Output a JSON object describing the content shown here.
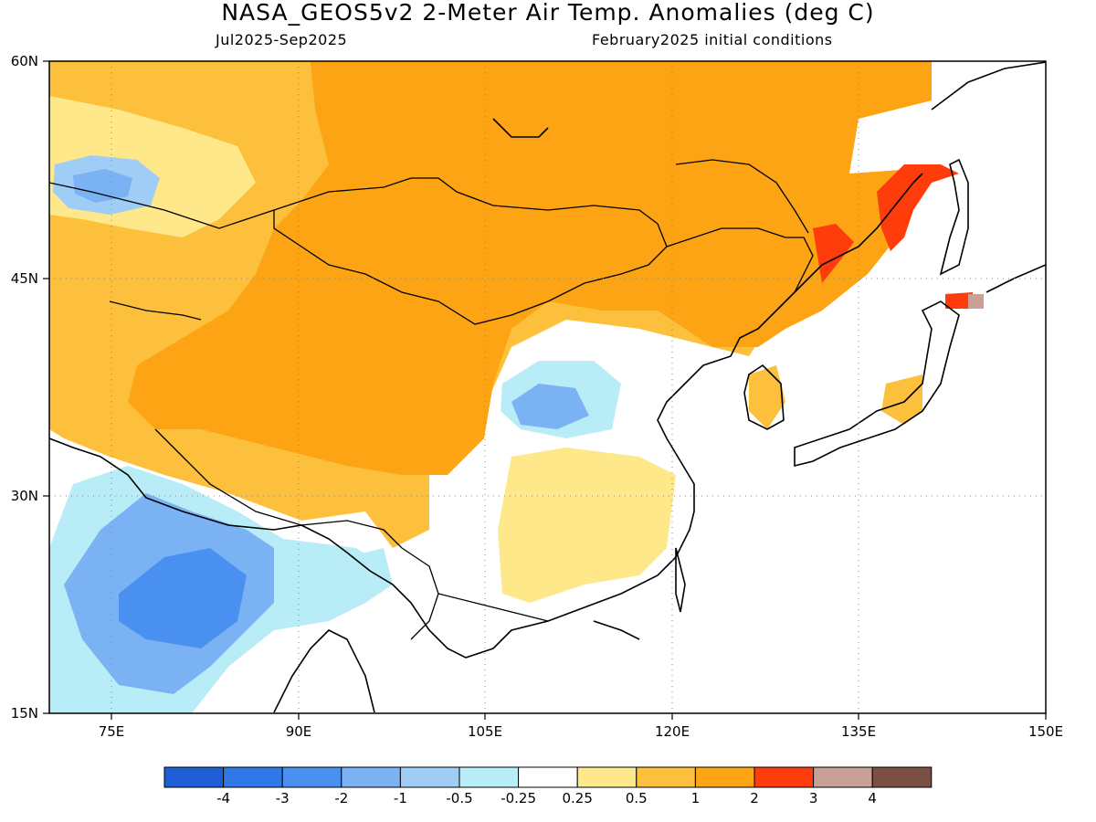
{
  "title": "NASA_GEOS5v2 2-Meter Air Temp. Anomalies (deg C)",
  "subtitle_left": "Jul2025-Sep2025",
  "subtitle_right": "February2025 initial conditions",
  "map": {
    "lon_range": [
      70,
      150
    ],
    "lat_range": [
      15,
      60
    ],
    "lon_ticks": [
      "75E",
      "90E",
      "105E",
      "120E",
      "135E",
      "150E"
    ],
    "lat_ticks": [
      "60N",
      "45N",
      "30N",
      "15N"
    ],
    "gridlines": "dotted"
  },
  "colorbar": {
    "labels": [
      "-4",
      "-3",
      "-2",
      "-1",
      "-0.5",
      "-0.25",
      "0.25",
      "0.5",
      "1",
      "2",
      "3",
      "4"
    ],
    "colors": [
      "#1e5fd6",
      "#2f78e8",
      "#4a90f0",
      "#7ab2f4",
      "#9fcdf6",
      "#b8ecf6",
      "#ffffff",
      "#fee88a",
      "#fcc03c",
      "#fca414",
      "#fe3c0c",
      "#c8a096",
      "#7a5044"
    ]
  },
  "regions": [
    {
      "name": "warm-mongolia-china",
      "color": "#fca414"
    },
    {
      "name": "warm-northwest",
      "color": "#fcc03c"
    },
    {
      "name": "cool-india",
      "color": "#7ab2f4"
    },
    {
      "name": "cool-central-china",
      "color": "#9fcdf6"
    },
    {
      "name": "hot-manchuria",
      "color": "#fe3c0c"
    }
  ]
}
